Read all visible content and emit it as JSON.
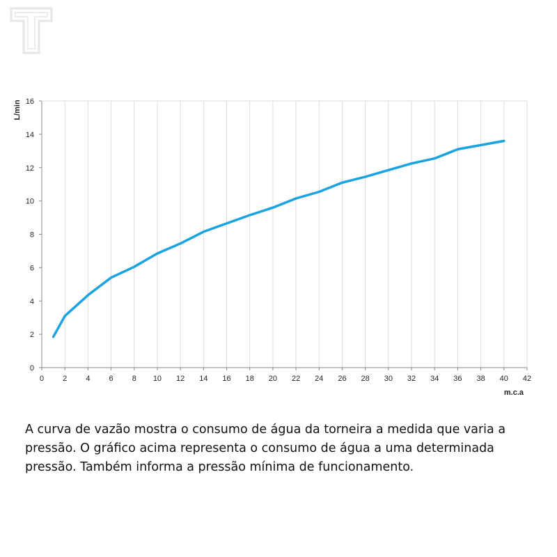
{
  "logo": {
    "icon": "t-letter-logo-icon",
    "color": "#e6e6e6"
  },
  "chart_data": {
    "type": "line",
    "title": "",
    "xlabel": "m.c.a",
    "ylabel": "L/min",
    "xlim": [
      0,
      42
    ],
    "ylim": [
      0,
      16
    ],
    "xticks": [
      0,
      2,
      4,
      6,
      8,
      10,
      12,
      14,
      16,
      18,
      20,
      22,
      24,
      26,
      28,
      30,
      32,
      34,
      36,
      38,
      40,
      42
    ],
    "yticks": [
      0,
      2,
      4,
      6,
      8,
      10,
      12,
      14,
      16
    ],
    "grid": "vertical",
    "legend": "none",
    "series": [
      {
        "color": "#1aa3e0",
        "x": [
          1,
          2,
          4,
          6,
          8,
          10,
          12,
          14,
          16,
          18,
          20,
          22,
          24,
          26,
          28,
          30,
          32,
          34,
          36,
          38,
          40
        ],
        "y": [
          1.85,
          3.1,
          4.35,
          5.4,
          6.05,
          6.85,
          7.45,
          8.15,
          8.65,
          9.15,
          9.6,
          10.15,
          10.55,
          11.1,
          11.45,
          11.85,
          12.25,
          12.55,
          13.1,
          13.35,
          13.6
        ]
      }
    ]
  },
  "caption": {
    "text": "A curva de vazão mostra o consumo de água da torneira a medida que varia a pressão. O gráfico acima representa o consumo de água a uma determinada pressão. Também informa a pressão mínima de funcionamento."
  }
}
